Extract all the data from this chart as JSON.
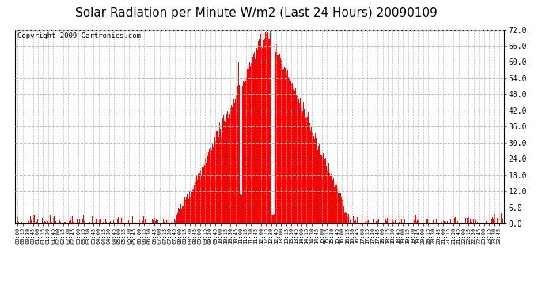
{
  "title": "Solar Radiation per Minute W/m2 (Last 24 Hours) 20090109",
  "copyright": "Copyright 2009 Cartronics.com",
  "bar_color": "#FF0000",
  "background_color": "#FFFFFF",
  "ylim": [
    0.0,
    72.0
  ],
  "yticks": [
    0.0,
    6.0,
    12.0,
    18.0,
    24.0,
    30.0,
    36.0,
    42.0,
    48.0,
    54.0,
    60.0,
    66.0,
    72.0
  ],
  "title_fontsize": 11,
  "copyright_fontsize": 6.5,
  "ytick_fontsize": 7,
  "xtick_fontsize": 5,
  "grid_color": "#BBBBBB",
  "red_line_color": "#FF0000",
  "sunrise_minute": 455,
  "peak_minute": 733,
  "sunset_minute": 985
}
